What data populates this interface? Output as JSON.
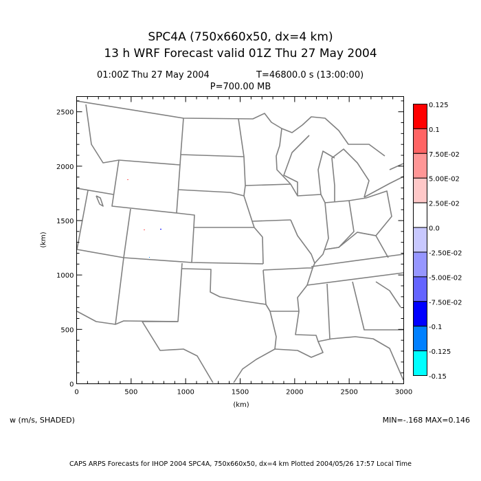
{
  "title": "SPC4A (750x660x50, dx=4 km)",
  "subtitle": "13 h WRF Forecast valid 01Z Thu 27 May 2004",
  "time_label": "01:00Z Thu 27 May 2004",
  "seconds_label": "T=46800.0 s (13:00:00)",
  "pressure_label": "P=700.00 MB",
  "variable_label": "w (m/s, SHADED)",
  "minmax_label": "MIN=-.168 MAX=0.146",
  "footer": "CAPS ARPS Forecasts for IHOP 2004   SPC4A, 750x660x50, dx=4 km   Plotted 2004/05/26 17:57 Local Time",
  "chart_data": {
    "type": "heatmap",
    "title": "SPC4A (750x660x50, dx=4 km)",
    "xlabel": "(km)",
    "ylabel": "(km)",
    "xlim": [
      0,
      3000
    ],
    "ylim": [
      0,
      2640
    ],
    "x_ticks": [
      "0",
      "500",
      "1000",
      "1500",
      "2000",
      "2500",
      "3000"
    ],
    "y_ticks": [
      "0",
      "500",
      "1000",
      "1500",
      "2000",
      "2500"
    ],
    "x_tick_values": [
      0,
      500,
      1000,
      1500,
      2000,
      2500,
      3000
    ],
    "y_tick_values": [
      0,
      500,
      1000,
      1500,
      2000,
      2500
    ],
    "colorbar": {
      "labels": [
        "0.125",
        "0.1",
        "7.50E-02",
        "5.00E-02",
        "2.50E-02",
        "0.0",
        "-2.50E-02",
        "-5.00E-02",
        "-7.50E-02",
        "-0.1",
        "-0.125",
        "-0.15"
      ],
      "colors": [
        "#ff0000",
        "#ff6464",
        "#ff9696",
        "#ffc8c8",
        "#ffffff",
        "#c8c8ff",
        "#9696ff",
        "#6464ff",
        "#0000ff",
        "#0080ff",
        "#00ffff"
      ]
    },
    "field_min": -0.168,
    "field_max": 0.146
  }
}
